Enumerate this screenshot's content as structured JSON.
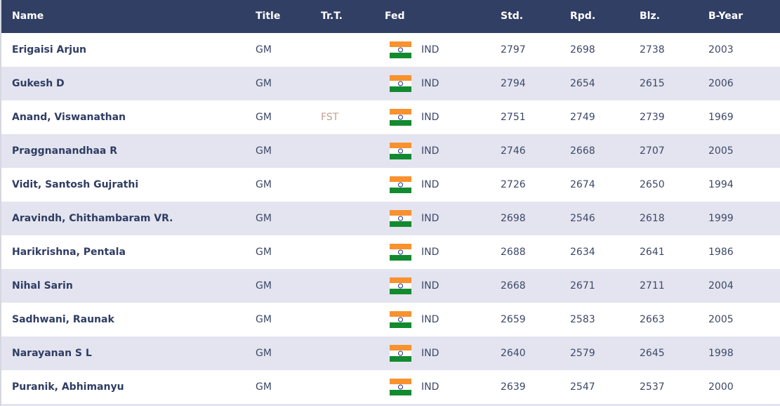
{
  "table": {
    "header": [
      "Name",
      "Title",
      "Tr.T.",
      "Fed",
      "Std.",
      "Rpd.",
      "Blz.",
      "B-Year"
    ],
    "rows": [
      [
        "Erigaisi Arjun",
        "GM",
        null,
        "IND",
        2797,
        2698,
        2738,
        2003
      ],
      [
        "Gukesh D",
        "GM",
        null,
        "IND",
        2794,
        2654,
        2615,
        2006
      ],
      [
        "Anand, Viswanathan",
        "GM",
        "FST",
        "IND",
        2751,
        2749,
        2739,
        1969
      ],
      [
        "Praggnanandhaa R",
        "GM",
        null,
        "IND",
        2746,
        2668,
        2707,
        2005
      ],
      [
        "Vidit, Santosh Gujrathi",
        "GM",
        null,
        "IND",
        2726,
        2674,
        2650,
        1994
      ],
      [
        "Aravindh, Chithambaram VR.",
        "GM",
        null,
        "IND",
        2698,
        2546,
        2618,
        1999
      ],
      [
        "Harikrishna, Pentala",
        "GM",
        null,
        "IND",
        2688,
        2634,
        2641,
        1986
      ],
      [
        "Nihal Sarin",
        "GM",
        null,
        "IND",
        2668,
        2671,
        2711,
        2004
      ],
      [
        "Sadhwani, Raunak",
        "GM",
        null,
        "IND",
        2659,
        2583,
        2663,
        2005
      ],
      [
        "Narayanan S L",
        "GM",
        null,
        "IND",
        2640,
        2579,
        2645,
        1998
      ],
      [
        "Puranik, Abhimanyu",
        "GM",
        null,
        "IND",
        2639,
        2547,
        2537,
        2000
      ]
    ]
  }
}
